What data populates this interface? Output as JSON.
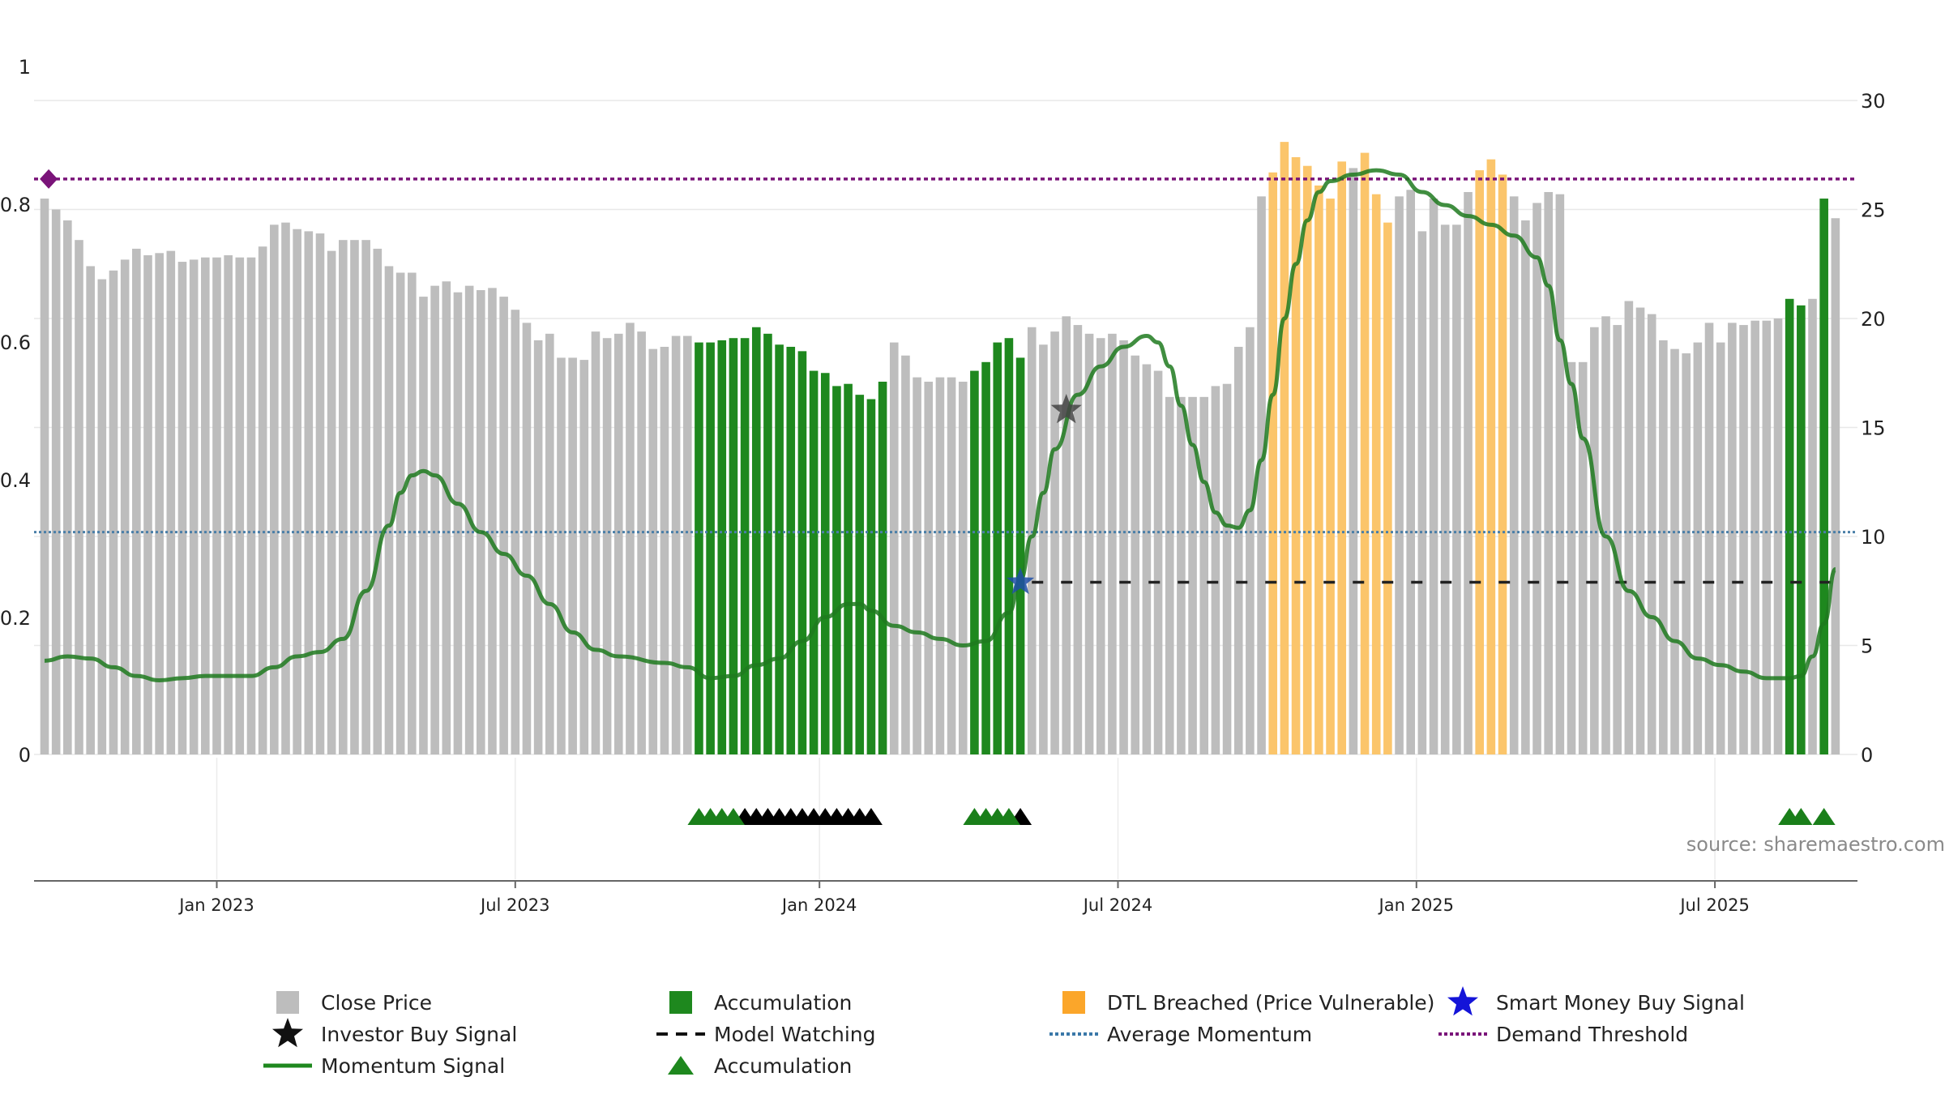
{
  "chart_data": {
    "type": "bar",
    "title": "",
    "source": "source: sharemaestro.com",
    "colors": {
      "close": "#bdbdbd",
      "accumulation": "#1e881e",
      "dtl": "#fbc56b",
      "momentum": "#1f7a1f",
      "average_momentum": "#4a7fa8",
      "demand_threshold": "#7a1479",
      "investor_star": "#444444",
      "smart_money_star": "#1f4fa8",
      "model_watching": "#222222"
    },
    "x_axis": {
      "labels": [
        "Jan 2023",
        "Jul 2023",
        "Jan 2024",
        "Jul 2024",
        "Jan 2025",
        "Jul 2025"
      ],
      "label_weeks": [
        15,
        41,
        67.5,
        93.5,
        119.5,
        145.5
      ],
      "week_range": [
        0,
        157
      ]
    },
    "left_axis": {
      "ticks": [
        "0",
        "0.2",
        "0.4",
        "0.6",
        "0.8",
        "1"
      ],
      "range": [
        0,
        1
      ]
    },
    "right_axis": {
      "ticks": [
        "0",
        "5",
        "10",
        "15",
        "20",
        "25",
        "30"
      ],
      "range": [
        0,
        30
      ]
    },
    "close_price": [
      25.5,
      25,
      24.5,
      23.6,
      22.4,
      21.8,
      22.2,
      22.7,
      23.2,
      22.9,
      23,
      23.1,
      22.6,
      22.7,
      22.8,
      22.8,
      22.9,
      22.8,
      22.8,
      23.3,
      24.3,
      24.4,
      24.1,
      24.0,
      23.9,
      23.1,
      23.6,
      23.6,
      23.6,
      23.2,
      22.4,
      22.1,
      22.1,
      21,
      21.5,
      21.7,
      21.2,
      21.5,
      21.3,
      21.4,
      21,
      20.4,
      19.8,
      19,
      19.3,
      18.2,
      18.2,
      18.1,
      19.4,
      19.1,
      19.3,
      19.8,
      19.4,
      18.6,
      18.7,
      19.2,
      19.2,
      18.9,
      18.9,
      19.0,
      19.1,
      19.1,
      19.6,
      19.3,
      18.8,
      18.7,
      18.5,
      17.6,
      17.5,
      16.9,
      17,
      16.5,
      16.3,
      17.1,
      18.9,
      18.3,
      17.3,
      17.1,
      17.3,
      17.3,
      17.1,
      17.6,
      18,
      18.9,
      19.1,
      18.2,
      19.6,
      18.8,
      19.4,
      20.1,
      19.7,
      19.3,
      19.1,
      19.3,
      19.0,
      18.3,
      17.9,
      17.6,
      16.4,
      16.4,
      16.4,
      16.4,
      16.9,
      17,
      18.7,
      19.6,
      25.6,
      26.7,
      28.1,
      27.4,
      27,
      26.1,
      25.5,
      27.2,
      26.9,
      27.6,
      25.7,
      24.4,
      25.6,
      25.9,
      24.0,
      25.5,
      24.3,
      24.3,
      25.8,
      26.8,
      27.3,
      26.6,
      25.6,
      24.5,
      25.3,
      25.8,
      25.7,
      18,
      18,
      19.6,
      20.1,
      19.7,
      20.8,
      20.5,
      20.2,
      19,
      18.6,
      18.4,
      18.9,
      19.8,
      18.9,
      19.8,
      19.7,
      19.9,
      19.9,
      20.0,
      20.9,
      20.6,
      20.9,
      25.5,
      24.6
    ],
    "accumulation_weeks": [
      57,
      58,
      59,
      60,
      61,
      62,
      63,
      64,
      65,
      66,
      67,
      68,
      69,
      70,
      71,
      72,
      73,
      81,
      82,
      83,
      84,
      85,
      152,
      153,
      155
    ],
    "dtl_weeks": [
      107,
      108,
      109,
      110,
      111,
      112,
      113,
      115,
      116,
      117,
      125,
      126,
      127
    ],
    "momentum": [
      [
        0,
        4.3
      ],
      [
        2,
        4.5
      ],
      [
        4,
        4.4
      ],
      [
        6,
        4.0
      ],
      [
        8,
        3.6
      ],
      [
        10,
        3.4
      ],
      [
        12,
        3.5
      ],
      [
        14,
        3.6
      ],
      [
        16,
        3.6
      ],
      [
        18,
        3.6
      ],
      [
        20,
        4.0
      ],
      [
        22,
        4.5
      ],
      [
        24,
        4.7
      ],
      [
        26,
        5.3
      ],
      [
        28,
        7.5
      ],
      [
        30,
        10.5
      ],
      [
        31,
        12.0
      ],
      [
        32,
        12.8
      ],
      [
        33,
        13.0
      ],
      [
        34,
        12.8
      ],
      [
        36,
        11.5
      ],
      [
        38,
        10.2
      ],
      [
        40,
        9.2
      ],
      [
        42,
        8.2
      ],
      [
        44,
        6.9
      ],
      [
        46,
        5.6
      ],
      [
        48,
        4.8
      ],
      [
        50,
        4.5
      ],
      [
        54,
        4.2
      ],
      [
        56,
        4.0
      ],
      [
        58,
        3.5
      ],
      [
        60,
        3.6
      ],
      [
        62,
        4.1
      ],
      [
        64,
        4.4
      ],
      [
        66,
        5.2
      ],
      [
        68,
        6.3
      ],
      [
        70,
        6.9
      ],
      [
        71,
        6.9
      ],
      [
        72,
        6.6
      ],
      [
        74,
        5.9
      ],
      [
        76,
        5.6
      ],
      [
        78,
        5.3
      ],
      [
        80,
        5.0
      ],
      [
        82,
        5.2
      ],
      [
        84,
        6.5
      ],
      [
        85,
        8.0
      ],
      [
        86,
        10.0
      ],
      [
        87,
        12.0
      ],
      [
        88,
        14.0
      ],
      [
        90,
        16.5
      ],
      [
        92,
        17.8
      ],
      [
        94,
        18.7
      ],
      [
        96,
        19.2
      ],
      [
        97,
        18.9
      ],
      [
        98,
        17.8
      ],
      [
        99,
        16.0
      ],
      [
        100,
        14.2
      ],
      [
        101,
        12.5
      ],
      [
        102,
        11.1
      ],
      [
        103,
        10.5
      ],
      [
        104,
        10.4
      ],
      [
        105,
        11.2
      ],
      [
        106,
        13.5
      ],
      [
        107,
        16.5
      ],
      [
        108,
        20
      ],
      [
        109,
        22.5
      ],
      [
        110,
        24.5
      ],
      [
        111,
        25.8
      ],
      [
        112,
        26.3
      ],
      [
        114,
        26.6
      ],
      [
        116,
        26.8
      ],
      [
        118,
        26.6
      ],
      [
        120,
        25.8
      ],
      [
        122,
        25.2
      ],
      [
        124,
        24.7
      ],
      [
        126,
        24.3
      ],
      [
        128,
        23.8
      ],
      [
        130,
        22.8
      ],
      [
        131,
        21.5
      ],
      [
        132,
        19
      ],
      [
        133,
        17
      ],
      [
        134,
        14.5
      ],
      [
        136,
        10
      ],
      [
        138,
        7.5
      ],
      [
        140,
        6.3
      ],
      [
        142,
        5.2
      ],
      [
        144,
        4.4
      ],
      [
        146,
        4.1
      ],
      [
        148,
        3.8
      ],
      [
        150,
        3.5
      ],
      [
        152,
        3.5
      ],
      [
        153,
        3.6
      ],
      [
        154,
        4.5
      ],
      [
        155,
        6
      ],
      [
        156,
        8.5
      ]
    ],
    "average_momentum": 10.2,
    "demand_threshold": 26.4,
    "model_watching": {
      "level": 7.9,
      "from_week": 86,
      "to_week": 156
    },
    "investor_buy_signal": {
      "week": 89,
      "value": 15.8
    },
    "smart_money_buy_signal": {
      "week": 85,
      "value": 7.9
    },
    "threshold_marker": {
      "week": 0.5,
      "value": 26.4
    },
    "accumulation_markers": {
      "green_weeks": [
        57,
        58,
        59,
        60,
        81,
        82,
        83,
        84,
        152,
        153,
        155
      ],
      "black_weeks": [
        61,
        62,
        63,
        64,
        65,
        66,
        67,
        68,
        69,
        70,
        71,
        72,
        85
      ]
    }
  },
  "legend": [
    {
      "label": "Close Price",
      "icon": "square",
      "color": "#bdbdbd"
    },
    {
      "label": "Accumulation",
      "icon": "square",
      "color": "#1e881e"
    },
    {
      "label": "DTL Breached (Price Vulnerable)",
      "icon": "square",
      "color": "#fba62a"
    },
    {
      "label": "Smart Money Buy Signal",
      "icon": "star",
      "color": "#1414d8"
    },
    {
      "label": "Investor Buy Signal",
      "icon": "star",
      "color": "#111111"
    },
    {
      "label": "Model Watching",
      "icon": "dash",
      "color": "#111111"
    },
    {
      "label": "Average Momentum",
      "icon": "dot",
      "color": "#3a78a8"
    },
    {
      "label": "Demand Threshold",
      "icon": "dot",
      "color": "#7a1479"
    },
    {
      "label": "Momentum Signal",
      "icon": "line",
      "color": "#1e881e"
    },
    {
      "label": "Accumulation",
      "icon": "triangle",
      "color": "#1e881e"
    }
  ]
}
